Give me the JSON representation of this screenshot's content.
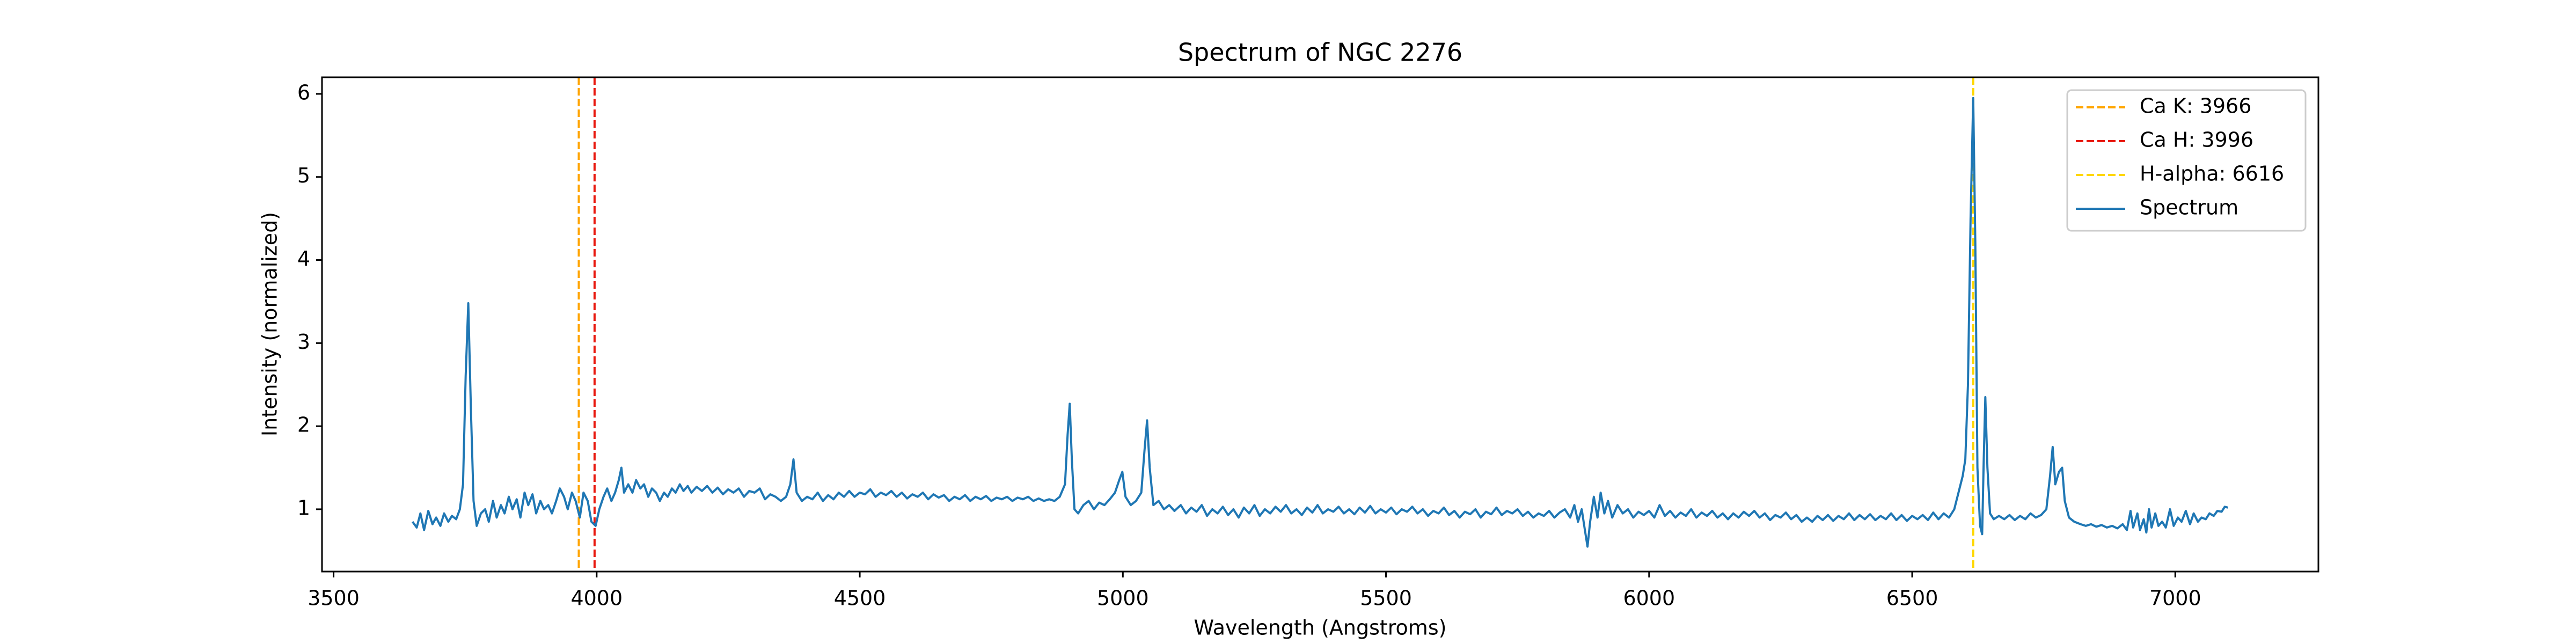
{
  "chart_data": {
    "type": "line",
    "title": "Spectrum of NGC 2276",
    "xlabel": "Wavelength (Angstroms)",
    "ylabel": "Intensity (normalized)",
    "x": [
      3650,
      3658,
      3665,
      3672,
      3680,
      3688,
      3695,
      3703,
      3710,
      3718,
      3725,
      3733,
      3740,
      3746,
      3751,
      3756,
      3761,
      3766,
      3772,
      3780,
      3788,
      3795,
      3803,
      3810,
      3818,
      3825,
      3833,
      3840,
      3848,
      3855,
      3863,
      3870,
      3878,
      3885,
      3893,
      3900,
      3908,
      3915,
      3923,
      3930,
      3938,
      3945,
      3953,
      3960,
      3968,
      3975,
      3983,
      3990,
      3998,
      4005,
      4013,
      4020,
      4028,
      4035,
      4042,
      4047,
      4052,
      4060,
      4068,
      4075,
      4083,
      4090,
      4098,
      4105,
      4113,
      4120,
      4128,
      4135,
      4143,
      4150,
      4158,
      4165,
      4173,
      4180,
      4190,
      4200,
      4210,
      4220,
      4230,
      4240,
      4250,
      4260,
      4270,
      4280,
      4290,
      4300,
      4310,
      4320,
      4330,
      4340,
      4350,
      4360,
      4368,
      4374,
      4380,
      4390,
      4400,
      4410,
      4420,
      4430,
      4440,
      4450,
      4460,
      4470,
      4480,
      4490,
      4500,
      4510,
      4520,
      4530,
      4540,
      4550,
      4560,
      4570,
      4580,
      4590,
      4600,
      4610,
      4620,
      4630,
      4640,
      4650,
      4660,
      4670,
      4680,
      4690,
      4700,
      4710,
      4720,
      4730,
      4740,
      4750,
      4760,
      4770,
      4780,
      4790,
      4800,
      4810,
      4820,
      4830,
      4840,
      4850,
      4860,
      4870,
      4880,
      4890,
      4895,
      4899,
      4903,
      4908,
      4915,
      4925,
      4935,
      4945,
      4955,
      4965,
      4975,
      4985,
      4993,
      4999,
      5005,
      5015,
      5025,
      5035,
      5041,
      5046,
      5051,
      5058,
      5068,
      5078,
      5088,
      5098,
      5110,
      5120,
      5130,
      5140,
      5150,
      5160,
      5170,
      5180,
      5190,
      5200,
      5210,
      5220,
      5230,
      5240,
      5250,
      5260,
      5270,
      5280,
      5290,
      5300,
      5310,
      5320,
      5330,
      5340,
      5350,
      5360,
      5370,
      5380,
      5390,
      5400,
      5410,
      5420,
      5430,
      5440,
      5450,
      5460,
      5470,
      5480,
      5490,
      5500,
      5510,
      5520,
      5530,
      5540,
      5550,
      5560,
      5570,
      5580,
      5590,
      5600,
      5610,
      5620,
      5630,
      5640,
      5650,
      5660,
      5670,
      5680,
      5690,
      5700,
      5710,
      5720,
      5730,
      5740,
      5750,
      5760,
      5770,
      5780,
      5790,
      5800,
      5810,
      5820,
      5830,
      5840,
      5850,
      5858,
      5865,
      5872,
      5878,
      5883,
      5888,
      5895,
      5902,
      5908,
      5915,
      5922,
      5930,
      5940,
      5950,
      5960,
      5970,
      5980,
      5990,
      6000,
      6010,
      6020,
      6030,
      6040,
      6050,
      6060,
      6070,
      6080,
      6090,
      6100,
      6110,
      6120,
      6130,
      6140,
      6150,
      6160,
      6170,
      6180,
      6190,
      6200,
      6210,
      6220,
      6230,
      6240,
      6250,
      6260,
      6270,
      6280,
      6290,
      6300,
      6310,
      6320,
      6330,
      6340,
      6350,
      6360,
      6370,
      6380,
      6390,
      6400,
      6410,
      6420,
      6430,
      6440,
      6450,
      6460,
      6470,
      6480,
      6490,
      6500,
      6510,
      6520,
      6530,
      6540,
      6550,
      6560,
      6570,
      6580,
      6590,
      6596,
      6601,
      6606,
      6611,
      6616,
      6620,
      6624,
      6629,
      6633,
      6636,
      6639,
      6643,
      6648,
      6655,
      6665,
      6675,
      6685,
      6695,
      6705,
      6715,
      6725,
      6735,
      6745,
      6755,
      6762,
      6767,
      6772,
      6779,
      6785,
      6790,
      6798,
      6808,
      6820,
      6830,
      6840,
      6850,
      6860,
      6870,
      6880,
      6890,
      6900,
      6908,
      6915,
      6920,
      6928,
      6933,
      6940,
      6945,
      6950,
      6955,
      6962,
      6968,
      6975,
      6982,
      6990,
      6997,
      7005,
      7012,
      7020,
      7028,
      7035,
      7043,
      7050,
      7058,
      7065,
      7073,
      7080,
      7088,
      7094,
      7100
    ],
    "series": [
      {
        "name": "Spectrum",
        "color": "#1f77b4",
        "values": [
          0.85,
          0.78,
          0.95,
          0.75,
          0.98,
          0.82,
          0.9,
          0.8,
          0.95,
          0.85,
          0.92,
          0.88,
          1.0,
          1.3,
          2.6,
          3.48,
          2.2,
          1.1,
          0.8,
          0.95,
          1.0,
          0.85,
          1.1,
          0.9,
          1.05,
          0.95,
          1.15,
          1.0,
          1.12,
          0.9,
          1.2,
          1.05,
          1.18,
          0.95,
          1.1,
          1.0,
          1.05,
          0.95,
          1.1,
          1.25,
          1.15,
          1.0,
          1.2,
          1.1,
          0.9,
          1.2,
          1.1,
          0.85,
          0.8,
          1.0,
          1.15,
          1.25,
          1.1,
          1.2,
          1.35,
          1.5,
          1.2,
          1.3,
          1.2,
          1.35,
          1.25,
          1.3,
          1.15,
          1.25,
          1.2,
          1.1,
          1.2,
          1.15,
          1.25,
          1.2,
          1.3,
          1.22,
          1.28,
          1.2,
          1.27,
          1.22,
          1.28,
          1.2,
          1.26,
          1.18,
          1.24,
          1.2,
          1.25,
          1.15,
          1.22,
          1.2,
          1.25,
          1.12,
          1.18,
          1.15,
          1.1,
          1.15,
          1.3,
          1.6,
          1.2,
          1.1,
          1.15,
          1.12,
          1.2,
          1.1,
          1.17,
          1.12,
          1.2,
          1.15,
          1.22,
          1.15,
          1.2,
          1.18,
          1.24,
          1.15,
          1.2,
          1.17,
          1.22,
          1.15,
          1.2,
          1.13,
          1.18,
          1.15,
          1.2,
          1.12,
          1.18,
          1.14,
          1.17,
          1.1,
          1.15,
          1.12,
          1.17,
          1.1,
          1.15,
          1.12,
          1.16,
          1.1,
          1.14,
          1.12,
          1.15,
          1.1,
          1.14,
          1.12,
          1.15,
          1.1,
          1.13,
          1.1,
          1.12,
          1.1,
          1.15,
          1.3,
          1.9,
          2.27,
          1.6,
          1.0,
          0.95,
          1.05,
          1.1,
          1.0,
          1.08,
          1.05,
          1.12,
          1.2,
          1.35,
          1.45,
          1.15,
          1.05,
          1.1,
          1.2,
          1.7,
          2.07,
          1.5,
          1.05,
          1.1,
          1.0,
          1.05,
          0.98,
          1.05,
          0.95,
          1.02,
          0.97,
          1.05,
          0.92,
          1.0,
          0.95,
          1.03,
          0.93,
          1.0,
          0.9,
          1.02,
          0.95,
          1.05,
          0.92,
          1.0,
          0.95,
          1.03,
          0.97,
          1.05,
          0.95,
          1.0,
          0.93,
          1.02,
          0.96,
          1.05,
          0.95,
          1.0,
          0.97,
          1.03,
          0.95,
          1.0,
          0.94,
          1.02,
          0.96,
          1.04,
          0.95,
          1.0,
          0.96,
          1.02,
          0.94,
          1.0,
          0.97,
          1.03,
          0.95,
          1.0,
          0.92,
          0.98,
          0.95,
          1.02,
          0.93,
          0.98,
          0.9,
          0.97,
          0.94,
          1.0,
          0.9,
          0.97,
          0.94,
          1.02,
          0.93,
          0.98,
          0.95,
          1.0,
          0.92,
          0.97,
          0.9,
          0.95,
          0.92,
          0.98,
          0.9,
          0.96,
          1.0,
          0.9,
          1.05,
          0.85,
          1.0,
          0.75,
          0.55,
          0.85,
          1.15,
          0.9,
          1.2,
          0.95,
          1.1,
          0.9,
          1.05,
          0.95,
          1.0,
          0.9,
          0.97,
          0.93,
          0.98,
          0.9,
          1.05,
          0.92,
          0.98,
          0.9,
          0.96,
          0.92,
          1.0,
          0.9,
          0.96,
          0.92,
          0.98,
          0.9,
          0.95,
          0.88,
          0.95,
          0.9,
          0.97,
          0.92,
          0.98,
          0.9,
          0.95,
          0.87,
          0.93,
          0.9,
          0.96,
          0.88,
          0.93,
          0.85,
          0.9,
          0.85,
          0.92,
          0.87,
          0.93,
          0.86,
          0.92,
          0.88,
          0.95,
          0.87,
          0.93,
          0.88,
          0.94,
          0.87,
          0.92,
          0.88,
          0.95,
          0.87,
          0.93,
          0.86,
          0.92,
          0.88,
          0.93,
          0.87,
          0.96,
          0.88,
          0.95,
          0.9,
          1.0,
          1.25,
          1.4,
          1.6,
          2.5,
          4.5,
          5.95,
          4.2,
          1.5,
          0.8,
          0.7,
          1.6,
          2.35,
          1.5,
          0.95,
          0.88,
          0.92,
          0.88,
          0.93,
          0.87,
          0.92,
          0.88,
          0.95,
          0.9,
          0.93,
          1.0,
          1.4,
          1.75,
          1.3,
          1.45,
          1.5,
          1.1,
          0.9,
          0.85,
          0.82,
          0.8,
          0.82,
          0.79,
          0.81,
          0.78,
          0.8,
          0.77,
          0.82,
          0.75,
          0.98,
          0.78,
          0.95,
          0.75,
          0.88,
          0.72,
          1.0,
          0.78,
          0.95,
          0.8,
          0.85,
          0.78,
          1.0,
          0.8,
          0.9,
          0.85,
          0.98,
          0.82,
          0.95,
          0.85,
          0.9,
          0.88,
          0.95,
          0.92,
          0.98,
          0.97,
          1.03,
          1.02
        ]
      }
    ],
    "vlines": [
      {
        "name": "Ca K: 3966",
        "x": 3966,
        "color": "#ffa500"
      },
      {
        "name": "Ca H: 3996",
        "x": 3996,
        "color": "#e8190f"
      },
      {
        "name": "H-alpha: 6616",
        "x": 6616,
        "color": "#ffd700"
      }
    ],
    "xlim": [
      3478,
      7272
    ],
    "ylim": [
      0.25,
      6.2
    ],
    "xticks": [
      3500,
      4000,
      4500,
      5000,
      5500,
      6000,
      6500,
      7000
    ],
    "yticks": [
      1,
      2,
      3,
      4,
      5,
      6
    ],
    "grid": false,
    "legend": "upper right"
  }
}
